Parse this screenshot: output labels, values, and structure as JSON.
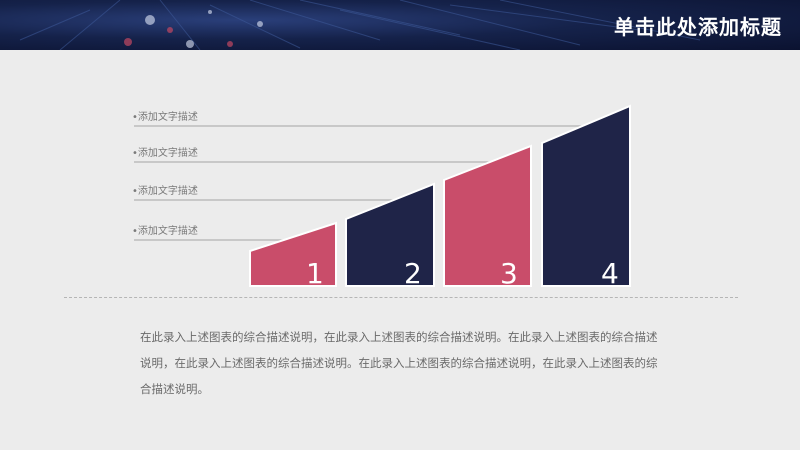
{
  "header": {
    "title": "单击此处添加标题"
  },
  "colors": {
    "accent_pink": "#c94d6a",
    "accent_navy": "#1f2448",
    "label_line": "#b3b3b3",
    "dot": "#999999"
  },
  "steps": [
    {
      "number": "1",
      "label": "•添加文字描述",
      "color": "pink"
    },
    {
      "number": "2",
      "label": "•添加文字描述",
      "color": "navy"
    },
    {
      "number": "3",
      "label": "•添加文字描述",
      "color": "pink"
    },
    {
      "number": "4",
      "label": "•添加文字描述",
      "color": "navy"
    }
  ],
  "description": "在此录入上述图表的综合描述说明，在此录入上述图表的综合描述说明。在此录入上述图表的综合描述说明，在此录入上述图表的综合描述说明。在此录入上述图表的综合描述说明，在此录入上述图表的综合描述说明。"
}
